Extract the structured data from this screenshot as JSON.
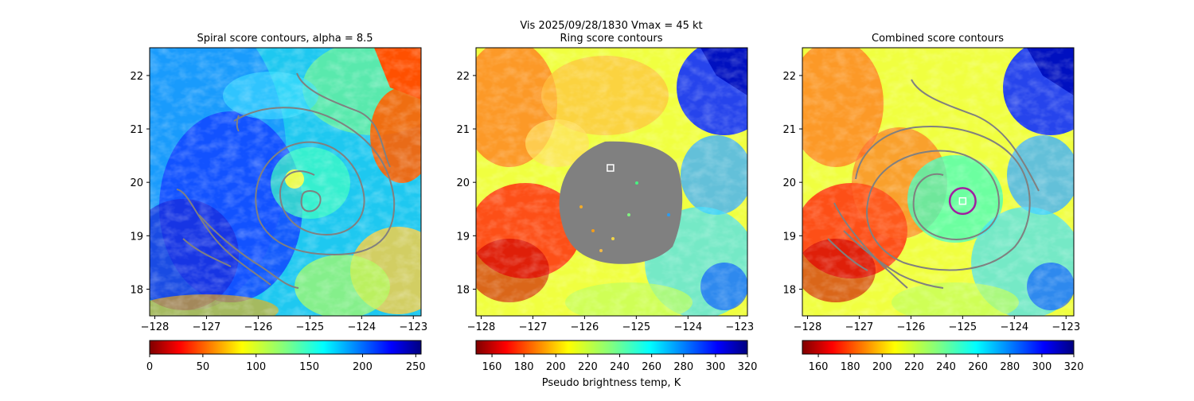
{
  "figure": {
    "suptitle_line1": "Vis  2025/09/28/1830    Vmax = 45 kt"
  },
  "chart_data": [
    {
      "type": "heatmap",
      "title": "Spiral score contours, alpha =  8.5",
      "xlim": [
        -128.1,
        -122.85
      ],
      "ylim": [
        17.5,
        22.52
      ],
      "xticks": [
        -128,
        -127,
        -126,
        -125,
        -124,
        -123
      ],
      "yticks": [
        18,
        19,
        20,
        21,
        22
      ],
      "cmap": "jet_r",
      "colorbar": {
        "range": [
          0,
          255
        ],
        "ticks": [
          0,
          50,
          100,
          150,
          200,
          250
        ],
        "label": ""
      },
      "contour_color": "#808080",
      "marker": null,
      "ring": null
    },
    {
      "type": "heatmap",
      "title": "Ring score contours",
      "xlim": [
        -128.1,
        -122.85
      ],
      "ylim": [
        17.5,
        22.52
      ],
      "xticks": [
        -128,
        -127,
        -126,
        -125,
        -124,
        -123
      ],
      "yticks": [
        18,
        19,
        20,
        21,
        22
      ],
      "cmap": "jet_r",
      "colorbar": {
        "range": [
          150,
          320
        ],
        "ticks": [
          160,
          180,
          200,
          220,
          240,
          260,
          280,
          300,
          320
        ],
        "label": "Pseudo brightness temp, K"
      },
      "masked_region": {
        "center_lon": -125.4,
        "center_lat": 19.65,
        "color": "#808080"
      },
      "marker": {
        "lon": -125.5,
        "lat": 20.27,
        "color": "#ffffff"
      },
      "ring": null
    },
    {
      "type": "heatmap",
      "title": "Combined score contours",
      "xlim": [
        -128.1,
        -122.85
      ],
      "ylim": [
        17.5,
        22.52
      ],
      "xticks": [
        -128,
        -127,
        -126,
        -125,
        -124,
        -123
      ],
      "yticks": [
        18,
        19,
        20,
        21,
        22
      ],
      "cmap": "jet_r",
      "colorbar": {
        "range": [
          150,
          320
        ],
        "ticks": [
          160,
          180,
          200,
          220,
          240,
          260,
          280,
          300,
          320
        ],
        "label": ""
      },
      "contour_color": "#808080",
      "marker": {
        "lon": -125.0,
        "lat": 19.65,
        "color": "#ffffff"
      },
      "ring": {
        "lon": -125.0,
        "lat": 19.65,
        "radius_deg": 0.25,
        "color": "#a020a0"
      }
    }
  ]
}
